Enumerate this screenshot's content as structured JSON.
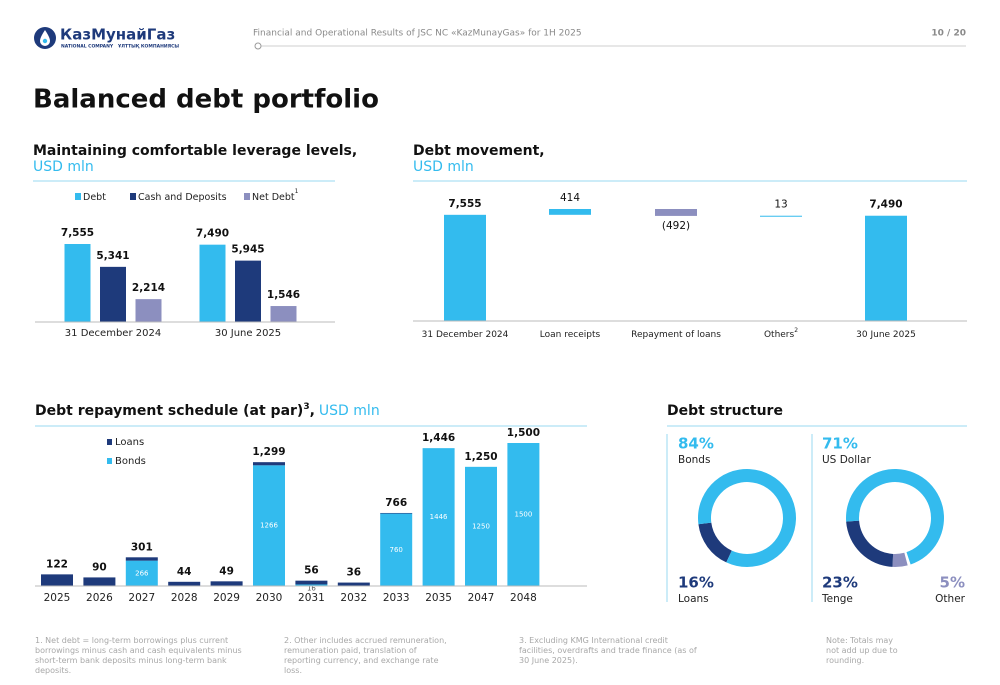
{
  "header": {
    "logo": "КазМунайГаз",
    "logo_line1": "NATIONAL COMPANY",
    "logo_line2": "ҰЛТТЫҚ КОМПАНИЯСЫ",
    "text": "Financial and Operational Results of JSC NC «KazMunayGas» for 1H 2025",
    "page": "10 / 20"
  },
  "title": "Balanced debt portfolio",
  "chart_data": [
    {
      "type": "grouped_bar",
      "title": "Maintaining comfortable leverage levels,",
      "subtitle": "USD mln",
      "categories": [
        "31 December 2024",
        "30 June 2025"
      ],
      "series": [
        {
          "name": "Debt",
          "color": "#33bbee",
          "values": [
            7555,
            7490
          ],
          "value_labels": [
            "7,555",
            "7,490"
          ]
        },
        {
          "name": "Cash and Deposits",
          "color": "#1e3a7b",
          "values": [
            5341,
            5945
          ],
          "value_labels": [
            "5,341",
            "5,945"
          ]
        },
        {
          "name": "Net Debt",
          "note": "1",
          "color": "#8c8fbf",
          "values": [
            2214,
            1546
          ],
          "value_labels": [
            "2,214",
            "1,546"
          ]
        }
      ]
    },
    {
      "type": "waterfall",
      "title": "Debt movement,",
      "subtitle": "USD mln",
      "categories": [
        "31 December 2024",
        "Loan receipts",
        "Repayment of loans",
        "Others",
        "30 June 2025"
      ],
      "category_notes": [
        null,
        null,
        null,
        "2",
        null
      ],
      "measures": [
        "total",
        "relative",
        "relative",
        "relative",
        "total"
      ],
      "values": [
        7555,
        414,
        -492,
        13,
        7490
      ],
      "value_labels": [
        "7,555",
        "414",
        "(492)",
        "13",
        "7,490"
      ],
      "colors": {
        "total": "#33bbee",
        "increase": "#33bbee",
        "decrease": "#8c8fbf"
      }
    },
    {
      "type": "stacked_bar",
      "title": "Debt repayment schedule (at par)",
      "title_note": "3",
      "title_separator": ",",
      "subtitle": "USD mln",
      "categories": [
        "2025",
        "2026",
        "2027",
        "2028",
        "2029",
        "2030",
        "2031",
        "2032",
        "2033",
        "2035",
        "2047",
        "2048"
      ],
      "series": [
        {
          "name": "Loans",
          "color": "#1e3a7b",
          "values": [
            122,
            90,
            35,
            44,
            49,
            33,
            40,
            36,
            6,
            0,
            0,
            0
          ]
        },
        {
          "name": "Bonds",
          "color": "#33bbee",
          "values": [
            0,
            0,
            266,
            0,
            0,
            1266,
            16,
            0,
            760,
            1446,
            1250,
            1500
          ],
          "value_labels": [
            null,
            null,
            "266",
            null,
            null,
            "1266",
            "16",
            null,
            "760",
            "1446",
            "1250",
            "1500"
          ]
        }
      ],
      "totals": [
        122,
        90,
        301,
        44,
        49,
        1299,
        56,
        36,
        766,
        1446,
        1250,
        1500
      ],
      "total_labels": [
        "122",
        "90",
        "301",
        "44",
        "49",
        "1,299",
        "56",
        "36",
        "766",
        "1,446",
        "1,250",
        "1,500"
      ]
    },
    {
      "type": "donut",
      "title": "Debt structure",
      "series": [
        {
          "name": "Bonds",
          "color": "#33bbee",
          "value": 84,
          "value_label": "84%"
        },
        {
          "name": "Loans",
          "color": "#1e3a7b",
          "value": 16,
          "value_label": "16%"
        }
      ]
    },
    {
      "type": "donut",
      "series": [
        {
          "name": "US Dollar",
          "color": "#33bbee",
          "value": 71,
          "value_label": "71%"
        },
        {
          "name": "Tenge",
          "color": "#1e3a7b",
          "value": 23,
          "value_label": "23%"
        },
        {
          "name": "Other",
          "color": "#8c8fbf",
          "value": 5,
          "value_label": "5%"
        }
      ]
    }
  ],
  "footnotes": [
    "1. Net debt = long-term borrowings plus current borrowings minus cash and cash equivalents minus short-term bank deposits minus long-term bank deposits.",
    "2. Other includes accrued remuneration, remuneration paid, translation of reporting currency, and exchange rate loss.",
    "3. Excluding KMG International credit facilities, overdrafts and trade finance (as of 30 June 2025).",
    "Note: Totals may not add up due to rounding."
  ]
}
